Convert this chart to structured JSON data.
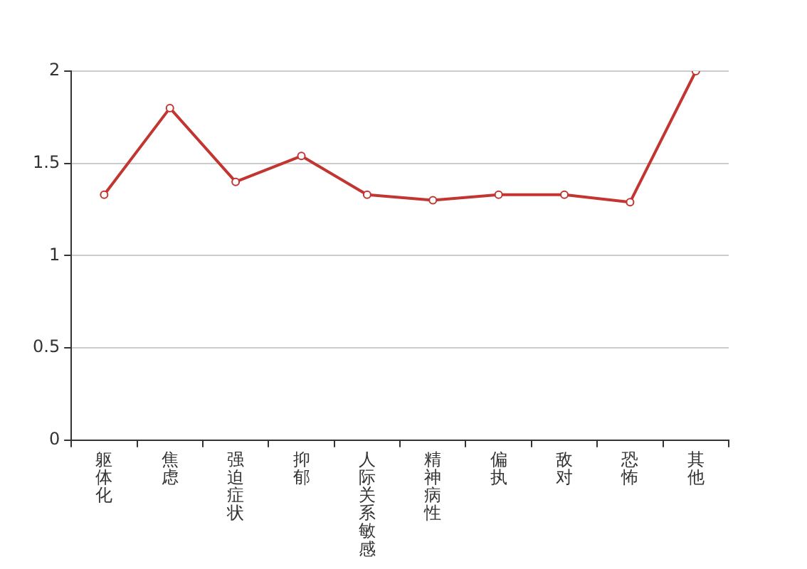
{
  "chart_data": {
    "type": "line",
    "categories": [
      "躯体化",
      "焦虑",
      "强迫症状",
      "抑郁",
      "人际关系敏感",
      "精神病性",
      "偏执",
      "敌对",
      "恐怖",
      "其他"
    ],
    "series": [
      {
        "color": "#c23531",
        "values": [
          1.33,
          1.8,
          1.4,
          1.54,
          1.33,
          1.3,
          1.33,
          1.33,
          1.29,
          2
        ]
      }
    ],
    "ylim": [
      0,
      2
    ],
    "yticks": [
      0,
      0.5,
      1,
      1.5,
      2
    ],
    "grid": "y",
    "legend": false,
    "marker": "circle",
    "line_style": "solid"
  }
}
